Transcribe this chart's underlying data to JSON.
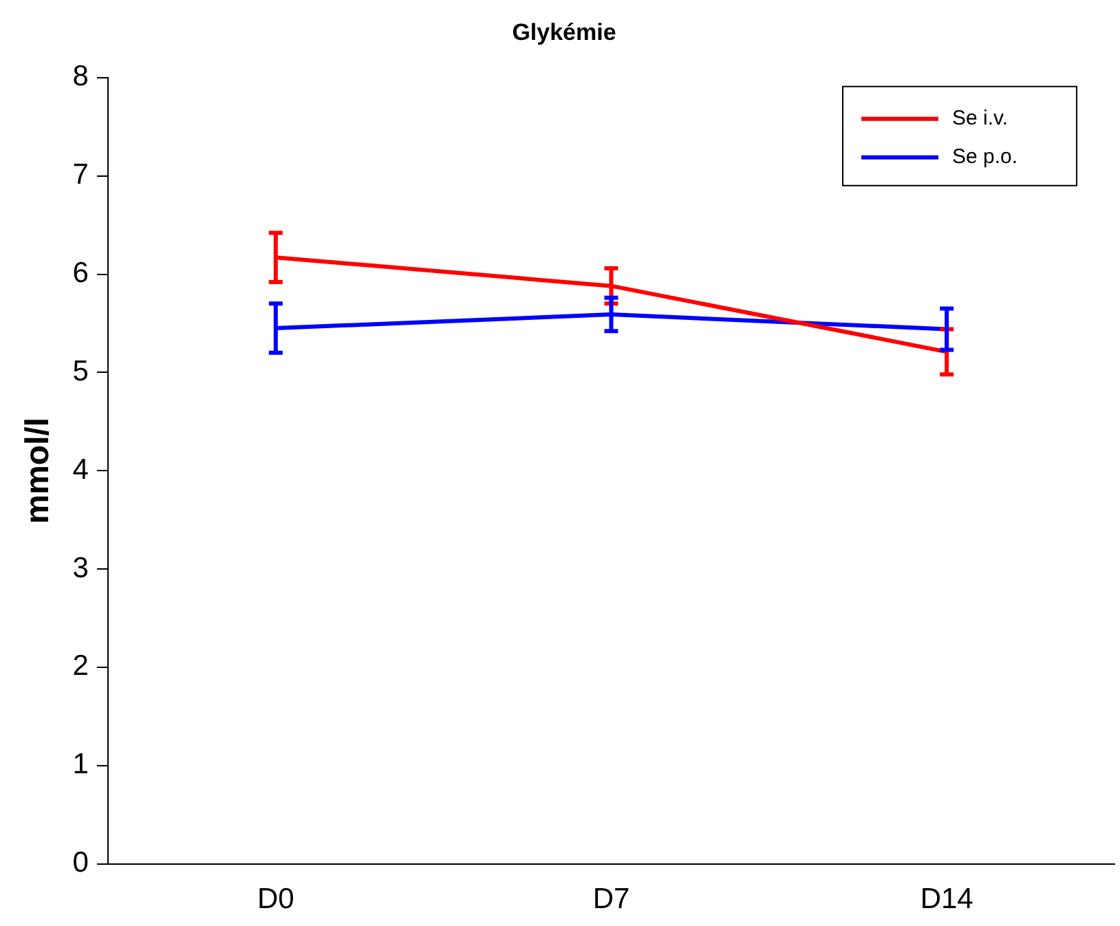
{
  "chart_data": {
    "type": "line",
    "title": "Glykémie",
    "ylabel": "mmol/l",
    "categories": [
      "D0",
      "D7",
      "D14"
    ],
    "series": [
      {
        "name": "Se i.v.",
        "color": "#ff0000",
        "values": [
          6.17,
          5.88,
          5.21
        ],
        "errors": [
          0.25,
          0.18,
          0.23
        ]
      },
      {
        "name": "Se p.o.",
        "color": "#0000ff",
        "values": [
          5.45,
          5.59,
          5.44
        ],
        "errors": [
          0.25,
          0.17,
          0.21
        ]
      }
    ],
    "ylim": [
      0,
      8
    ],
    "yticks": [
      0,
      1,
      2,
      3,
      4,
      5,
      6,
      7,
      8
    ],
    "grid": false,
    "legend": "top right",
    "marker": "none",
    "line_style": "solid"
  }
}
